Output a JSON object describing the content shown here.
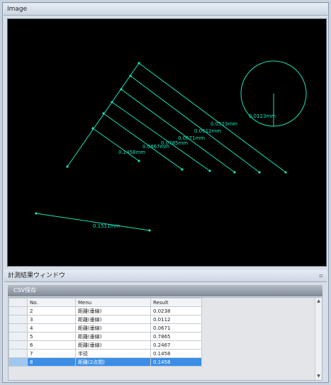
{
  "image_pane": {
    "title": "Image"
  },
  "canvas": {
    "accent": "#19e3b8",
    "labels": [
      {
        "id": "lbl-1",
        "text": "0.0523mm"
      },
      {
        "id": "lbl-2",
        "text": "0.0612mm"
      },
      {
        "id": "lbl-3",
        "text": "0.0671mm"
      },
      {
        "id": "lbl-4",
        "text": "0.0785mm"
      },
      {
        "id": "lbl-5",
        "text": "0.0867mm"
      },
      {
        "id": "lbl-6",
        "text": "0.1458mm"
      },
      {
        "id": "lbl-7",
        "text": "0.0123mm"
      },
      {
        "id": "lbl-8",
        "text": "0.1511mm"
      }
    ]
  },
  "results_pane": {
    "title": "計測結果ウィンドウ",
    "tab": "CSV保存",
    "columns": [
      "No.",
      "Menu",
      "Result"
    ],
    "rows": [
      {
        "no": "2",
        "menu": "距離(垂線)",
        "result": "0.0238"
      },
      {
        "no": "3",
        "menu": "距離(垂線)",
        "result": "0.0112"
      },
      {
        "no": "4",
        "menu": "距離(垂線)",
        "result": "0.0671"
      },
      {
        "no": "5",
        "menu": "距離(垂線)",
        "result": "0.7865"
      },
      {
        "no": "6",
        "menu": "距離(垂線)",
        "result": "0.2467"
      },
      {
        "no": "7",
        "menu": "半径",
        "result": "0.1458"
      },
      {
        "no": "8",
        "menu": "距離(2点間)",
        "result": "0.1458"
      }
    ]
  }
}
